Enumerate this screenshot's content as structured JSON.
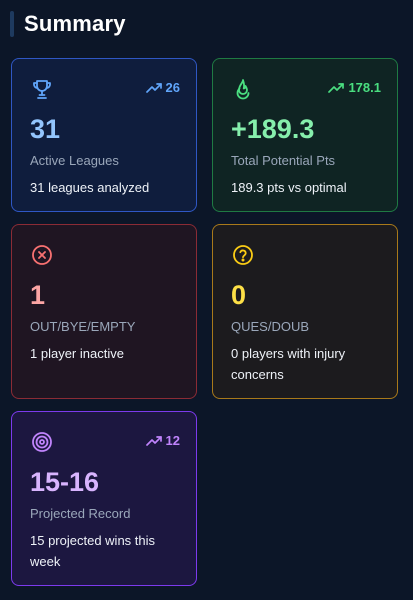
{
  "header": {
    "title": "Summary"
  },
  "cards": [
    {
      "id": "active-leagues",
      "icon": "trophy-icon",
      "trend": "26",
      "value": "31",
      "label": "Active Leagues",
      "description": "31 leagues analyzed",
      "accent": "#60a5fa"
    },
    {
      "id": "potential-pts",
      "icon": "flame-icon",
      "trend": "178.1",
      "value": "+189.3",
      "label": "Total Potential Pts",
      "description": "189.3 pts vs optimal",
      "accent": "#4ade80"
    },
    {
      "id": "out-bye-empty",
      "icon": "x-circle-icon",
      "value": "1",
      "label": "OUT/BYE/EMPTY",
      "description": "1 player inactive",
      "accent": "#f87171"
    },
    {
      "id": "ques-doub",
      "icon": "question-circle-icon",
      "value": "0",
      "label": "QUES/DOUB",
      "description": "0 players with injury concerns",
      "accent": "#facc15"
    },
    {
      "id": "projected-record",
      "icon": "target-icon",
      "trend": "12",
      "value": "15-16",
      "label": "Projected Record",
      "description": "15 projected wins this week",
      "accent": "#c084fc"
    }
  ]
}
